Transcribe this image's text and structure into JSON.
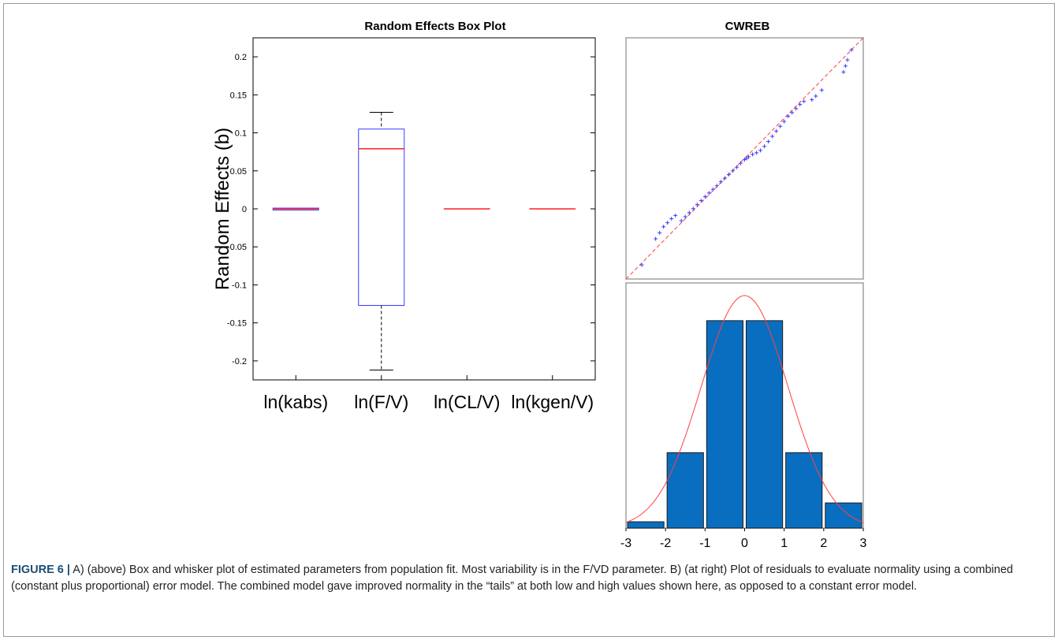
{
  "chart_data": [
    {
      "type": "box",
      "title": "Random Effects Box Plot",
      "ylabel": "Random Effects (b)",
      "ylim": [
        -0.225,
        0.225
      ],
      "yticks": [
        "0.2",
        "0.15",
        "0.1",
        "0.05",
        "0",
        "-0.05",
        "-0.1",
        "-0.15",
        "-0.2"
      ],
      "ytick_values": [
        0.2,
        0.15,
        0.1,
        0.05,
        0,
        -0.05,
        -0.1,
        -0.15,
        -0.2
      ],
      "categories": [
        "ln(kabs)",
        "ln(F/V)",
        "ln(CL/V)",
        "ln(kgen/V)"
      ],
      "boxes": [
        {
          "min": -0.0015,
          "q1": -0.0015,
          "median": 0.0,
          "q3": 0.001,
          "max": 0.001
        },
        {
          "min": -0.212,
          "q1": -0.127,
          "median": 0.079,
          "q3": 0.105,
          "max": 0.127
        },
        {
          "min": 0.0,
          "q1": 0.0,
          "median": 0.0,
          "q3": 0.0,
          "max": 0.0
        },
        {
          "min": 0.0,
          "q1": 0.0,
          "median": 0.0,
          "q3": 0.0,
          "max": 0.0
        }
      ],
      "colors": {
        "box": "#3a3aff",
        "median": "#ff2020",
        "whisker": "#000000"
      }
    },
    {
      "type": "scatter",
      "title": "CWREB",
      "xlim": [
        -3,
        3
      ],
      "ylim": [
        -3,
        3
      ],
      "reference_line": {
        "x": [
          -3,
          3
        ],
        "y": [
          -3,
          3
        ],
        "color": "#ff4040"
      },
      "points": [
        [
          -2.6,
          -2.65
        ],
        [
          -2.25,
          -2.0
        ],
        [
          -2.15,
          -1.85
        ],
        [
          -2.05,
          -1.7
        ],
        [
          -1.95,
          -1.6
        ],
        [
          -1.85,
          -1.5
        ],
        [
          -1.75,
          -1.42
        ],
        [
          -1.6,
          -1.55
        ],
        [
          -1.5,
          -1.45
        ],
        [
          -1.4,
          -1.35
        ],
        [
          -1.3,
          -1.25
        ],
        [
          -1.2,
          -1.15
        ],
        [
          -1.1,
          -1.05
        ],
        [
          -1.0,
          -0.95
        ],
        [
          -0.9,
          -0.86
        ],
        [
          -0.8,
          -0.77
        ],
        [
          -0.7,
          -0.68
        ],
        [
          -0.6,
          -0.58
        ],
        [
          -0.5,
          -0.49
        ],
        [
          -0.4,
          -0.4
        ],
        [
          -0.3,
          -0.31
        ],
        [
          -0.2,
          -0.22
        ],
        [
          -0.1,
          -0.12
        ],
        [
          0.0,
          -0.03
        ],
        [
          0.05,
          0.0
        ],
        [
          0.1,
          0.04
        ],
        [
          0.2,
          0.1
        ],
        [
          0.3,
          0.14
        ],
        [
          0.4,
          0.2
        ],
        [
          0.5,
          0.3
        ],
        [
          0.6,
          0.42
        ],
        [
          0.7,
          0.55
        ],
        [
          0.8,
          0.68
        ],
        [
          0.9,
          0.8
        ],
        [
          1.0,
          0.92
        ],
        [
          1.1,
          1.05
        ],
        [
          1.2,
          1.14
        ],
        [
          1.3,
          1.24
        ],
        [
          1.4,
          1.34
        ],
        [
          1.5,
          1.42
        ],
        [
          1.7,
          1.46
        ],
        [
          1.8,
          1.55
        ],
        [
          1.95,
          1.7
        ],
        [
          2.5,
          2.15
        ],
        [
          2.55,
          2.3
        ],
        [
          2.6,
          2.45
        ],
        [
          2.7,
          2.7
        ]
      ],
      "point_color": "#3a3aff"
    },
    {
      "type": "bar",
      "title": "",
      "x_tick_labels": [
        "-3",
        "-2",
        "-1",
        "0",
        "1",
        "2",
        "3"
      ],
      "xlim": [
        -3,
        3
      ],
      "bins": [
        {
          "center": -2.5,
          "value": 1
        },
        {
          "center": -1.5,
          "value": 12
        },
        {
          "center": -0.5,
          "value": 33
        },
        {
          "center": 0.5,
          "value": 33
        },
        {
          "center": 1.5,
          "value": 12
        },
        {
          "center": 2.5,
          "value": 4
        }
      ],
      "bar_color": "#0a6ec0",
      "normal_curve": {
        "peak": 37,
        "mean": 0,
        "sd": 1.1,
        "color": "#ff4040"
      }
    }
  ],
  "caption": {
    "label": "FIGURE 6 |",
    "text": " A) (above) Box and whisker plot of estimated parameters from population fit. Most variability is in the F/VD parameter. B) (at right) Plot of residuals to evaluate normality using a combined (constant plus proportional) error model. The combined model gave improved normality in the “tails” at both low and high values shown here, as opposed to a constant error model."
  }
}
